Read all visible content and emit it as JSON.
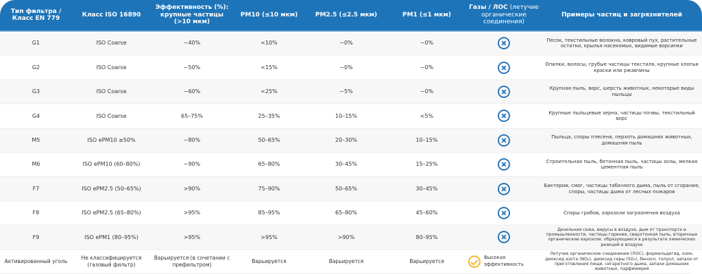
{
  "header": {
    "col1": "Тип фильтра / Класс EN 779",
    "col2": "Класс ISO 16890",
    "col3": "Эффективность (%): крупные частицы (>10 мкм)",
    "col4": "PM10 (≤10 мкм)",
    "col5": "PM2.5 (≤2.5 мкм)",
    "col6": "PM1 (≤1 мкм)",
    "col7_bold": "Газы / ЛОС",
    "col7_light": "(летучие органические соединения)",
    "col8": "Примеры частиц и загрязнителей"
  },
  "rows": [
    {
      "type": "G1",
      "iso": "ISO Coarse",
      "coarse": "~40%",
      "pm10": "<10%",
      "pm25": "~0%",
      "pm1": "~0%",
      "gas": "x-circle-icon",
      "examples": "Песок, текстильные волокна, ковровый пух, растительные остатки, крылья насекомых, видимые ворсинки"
    },
    {
      "type": "G2",
      "iso": "ISO Coarse",
      "coarse": "~50%",
      "pm10": "<15%",
      "pm25": "~0%",
      "pm1": "~0%",
      "gas": "x-circle-icon",
      "examples": "Опилки, волосы, грубые частицы текстиля, крупные хлопья краски или ржавчины"
    },
    {
      "type": "G3",
      "iso": "ISO Coarse",
      "coarse": "~60%",
      "pm10": "<25%",
      "pm25": "~5%",
      "pm1": "~0%",
      "gas": "x-circle-icon",
      "examples": "Крупная пыль, ворс, шерсть животных, некоторые виды пыльцы"
    },
    {
      "type": "G4",
      "iso": "ISO Coarse",
      "coarse": "65–75%",
      "pm10": "25–35%",
      "pm25": "10–15%",
      "pm1": "<5%",
      "gas": "x-circle-icon",
      "examples": "Крупные пыльцевые зерна, частицы почвы, текстильный ворс"
    },
    {
      "type": "M5",
      "iso": "ISO ePM10 ≥50%",
      "coarse": "~80%",
      "pm10": "50–65%",
      "pm25": "20–30%",
      "pm1": "10–15%",
      "gas": "x-circle-icon",
      "examples": "Пыльца, споры плесени, перхоть домашних животных, домашняя пыль"
    },
    {
      "type": "M6",
      "iso": "ISO ePM10 (60–80%)",
      "coarse": "~90%",
      "pm10": "65–80%",
      "pm25": "30–45%",
      "pm1": "15–25%",
      "gas": "x-circle-icon",
      "examples": "Строительная пыль, бетонная пыль, частицы золы, мелкая цементная пыль"
    },
    {
      "type": "F7",
      "iso": "ISO ePM2.5 (50–65%)",
      "coarse": ">90%",
      "pm10": "75–90%",
      "pm25": "50–65%",
      "pm1": "30–45%",
      "gas": "x-circle-icon",
      "examples": "Бактерии, смог, частицы табачного дыма, пыль от сгорания, споры, частицы дыма от лесных пожаров"
    },
    {
      "type": "F8",
      "iso": "ISO ePM2.5 (65–80%)",
      "coarse": ">95%",
      "pm10": "85–95%",
      "pm25": "65–80%",
      "pm1": "45–60%",
      "gas": "x-circle-icon",
      "examples": "Споры грибов, аэрозоли загрязнения воздуха"
    },
    {
      "type": "F9",
      "iso": "ISO ePM1 (80–95%)",
      "coarse": ">95%",
      "pm10": ">95%",
      "pm25": ">90%",
      "pm1": "80–95%",
      "gas": "x-circle-icon",
      "examples": "Дизельная сажа, вирусы в воздухе, дым от транспорта и промышленности, частицы горения, сверхтонкая пыль, вторичные органические аэрозоли, образующиеся в результате химических реакций в воздухе"
    }
  ],
  "last_row": {
    "type": "Активированный уголь",
    "iso": "Не классифицируется (газовый фильтр)",
    "coarse": "Варьируется (в сочетании с префильтром)",
    "pm10": "Варьируется",
    "pm25": "Варьируется",
    "pm1": "Варьируется",
    "gas": "Высокая эффективность",
    "gas_icon": "check-circle-icon",
    "examples": "Летучие органические соединения (ЛОС), формальдегид, озон, диоксид азота (NO₂), диоксид серы (SO₂), бензол, толуол, запахи от приготовления пищи, сигаретного дыма, запахи домашних животных, парфюмерия"
  },
  "colors": {
    "header": "#1e74b8",
    "x_icon": "#2a78bb",
    "check_icon": "#f5b82e",
    "row_alt": "#f7f7f7"
  }
}
